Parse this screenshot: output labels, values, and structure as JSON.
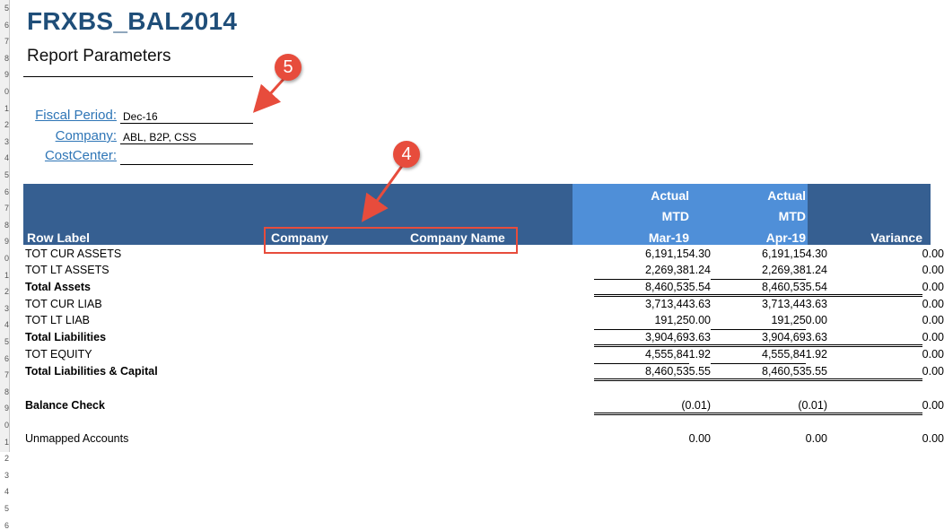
{
  "report": {
    "title": "FRXBS_BAL2014",
    "subtitle": "Report Parameters"
  },
  "params": [
    {
      "label": "Fiscal Period:",
      "value": "Dec-16"
    },
    {
      "label": "Company:",
      "value": "ABL, B2P, CSS"
    },
    {
      "label": "CostCenter:",
      "value": ""
    }
  ],
  "header": {
    "row_label": "Row Label",
    "company": "Company",
    "company_name": "Company Name",
    "col1": {
      "line1": "Actual",
      "line2": "MTD",
      "line3": "Mar-19"
    },
    "col2": {
      "line1": "Actual",
      "line2": "MTD",
      "line3": "Apr-19"
    },
    "variance": "Variance"
  },
  "rows": [
    {
      "label": "TOT CUR ASSETS",
      "mar": "6,191,154.30",
      "apr": "6,191,154.30",
      "var": "0.00",
      "bold": false
    },
    {
      "label": "TOT LT ASSETS",
      "mar": "2,269,381.24",
      "apr": "2,269,381.24",
      "var": "0.00",
      "bold": false
    },
    {
      "label": "Total Assets",
      "mar": "8,460,535.54",
      "apr": "8,460,535.54",
      "var": "0.00",
      "bold": true
    },
    {
      "label": "TOT CUR LIAB",
      "mar": "3,713,443.63",
      "apr": "3,713,443.63",
      "var": "0.00",
      "bold": false
    },
    {
      "label": "TOT LT LIAB",
      "mar": "191,250.00",
      "apr": "191,250.00",
      "var": "0.00",
      "bold": false
    },
    {
      "label": "Total Liabilities",
      "mar": "3,904,693.63",
      "apr": "3,904,693.63",
      "var": "0.00",
      "bold": true
    },
    {
      "label": "TOT EQUITY",
      "mar": "4,555,841.92",
      "apr": "4,555,841.92",
      "var": "0.00",
      "bold": false
    },
    {
      "label": "Total Liabilities & Capital",
      "mar": "8,460,535.55",
      "apr": "8,460,535.55",
      "var": "0.00",
      "bold": true
    },
    {
      "label": "Balance Check",
      "mar": "(0.01)",
      "apr": "(0.01)",
      "var": "0.00",
      "bold": true
    },
    {
      "label": "Unmapped Accounts",
      "mar": "0.00",
      "apr": "0.00",
      "var": "0.00",
      "bold": false
    }
  ],
  "annotations": {
    "badge_a": "5",
    "badge_b": "4"
  },
  "row_numbers": [
    "5",
    "6",
    "7",
    "8",
    "9",
    "0",
    "1",
    "2",
    "3",
    "4",
    "5",
    "6",
    "7",
    "8",
    "9",
    "0",
    "1",
    "2",
    "3",
    "4",
    "5",
    "6",
    "7",
    "8",
    "9",
    "0",
    "1",
    "2",
    "3",
    "4",
    "5",
    "6"
  ],
  "colors": {
    "title": "#1f4e79",
    "header_dark": "#365f91",
    "header_light": "#4f8fd8",
    "link": "#2e75b6",
    "annotation": "#e74c3c"
  }
}
